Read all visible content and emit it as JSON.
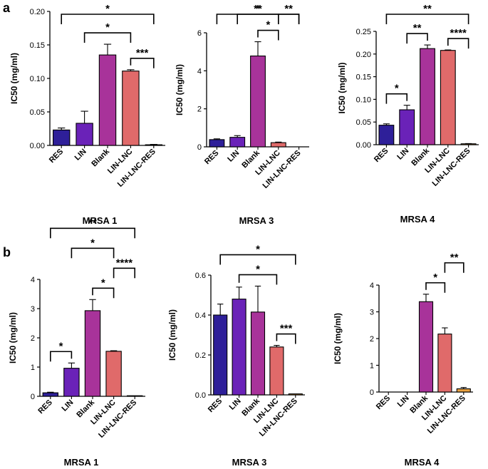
{
  "panels": [
    {
      "letter": "a"
    },
    {
      "letter": "b"
    }
  ],
  "colors": {
    "RES": "#2e1f99",
    "LIN": "#6a22b8",
    "Blank": "#a8339a",
    "LIN-LNC": "#e06a6a",
    "LIN-LNC-RES": "#e8a040"
  },
  "chart_data": [
    {
      "type": "bar",
      "panel": "a",
      "title": "MRSA 1",
      "ylabel": "IC50 (mg/ml)",
      "categories": [
        "RES",
        "LIN",
        "Blank",
        "LIN-LNC",
        "LIN-LNC-RES"
      ],
      "values": [
        0.023,
        0.033,
        0.135,
        0.111,
        0.001
      ],
      "errors": [
        0.003,
        0.018,
        0.016,
        0.002,
        0.0005
      ],
      "ylim": [
        0,
        0.2
      ],
      "yticks": [
        "0.00",
        "0.05",
        "0.10",
        "0.15",
        "0.20"
      ],
      "ytick_values": [
        0,
        0.05,
        0.1,
        0.15,
        0.2
      ],
      "significance": [
        {
          "from": 0,
          "to": 4,
          "label": "*"
        },
        {
          "from": 1,
          "to": 3,
          "label": "*"
        },
        {
          "from": 3,
          "to": 4,
          "label": "***"
        }
      ]
    },
    {
      "type": "bar",
      "panel": "a",
      "title": "MRSA 3",
      "ylabel": "IC50 (mg/ml)",
      "categories": [
        "RES",
        "LIN",
        "Blank",
        "LIN-LNC",
        "LIN-LNC-RES"
      ],
      "values": [
        0.38,
        0.5,
        4.78,
        0.22,
        0.0
      ],
      "errors": [
        0.04,
        0.09,
        0.75,
        0.03,
        0.0
      ],
      "ylim": [
        0,
        6
      ],
      "yticks": [
        "0",
        "2",
        "4",
        "6"
      ],
      "ytick_values": [
        0,
        2,
        4,
        6
      ],
      "significance": [
        {
          "from": 0,
          "to": 4,
          "label": "**"
        },
        {
          "from": 1,
          "to": 3,
          "label": "*"
        },
        {
          "from": 2,
          "to": 3,
          "label": "*"
        },
        {
          "from": 3,
          "to": 4,
          "label": "**"
        }
      ]
    },
    {
      "type": "bar",
      "panel": "a",
      "title": "MRSA 4",
      "ylabel": "IC50 (mg/ml)",
      "categories": [
        "RES",
        "LIN",
        "Blank",
        "LIN-LNC",
        "LIN-LNC-RES"
      ],
      "values": [
        0.043,
        0.077,
        0.212,
        0.208,
        0.002
      ],
      "errors": [
        0.003,
        0.01,
        0.008,
        0.001,
        0.0005
      ],
      "ylim": [
        0,
        0.25
      ],
      "yticks": [
        "0.00",
        "0.05",
        "0.10",
        "0.15",
        "0.20",
        "0.25"
      ],
      "ytick_values": [
        0,
        0.05,
        0.1,
        0.15,
        0.2,
        0.25
      ],
      "significance": [
        {
          "from": 0,
          "to": 4,
          "label": "**"
        },
        {
          "from": 0,
          "to": 1,
          "label": "*"
        },
        {
          "from": 1,
          "to": 2,
          "label": "**"
        },
        {
          "from": 3,
          "to": 4,
          "label": "****"
        }
      ]
    },
    {
      "type": "bar",
      "panel": "b",
      "title": "MRSA 1",
      "ylabel": "IC50 (mg/ml)",
      "categories": [
        "RES",
        "LIN",
        "Blank",
        "LIN-LNC",
        "LIN-LNC-RES"
      ],
      "values": [
        0.12,
        0.96,
        2.93,
        1.54,
        0.02
      ],
      "errors": [
        0.02,
        0.18,
        0.38,
        0.02,
        0.0
      ],
      "ylim": [
        0,
        4
      ],
      "yticks": [
        "0",
        "1",
        "2",
        "3",
        "4"
      ],
      "ytick_values": [
        0,
        1,
        2,
        3,
        4
      ],
      "significance": [
        {
          "from": 0,
          "to": 4,
          "label": "**"
        },
        {
          "from": 1,
          "to": 3,
          "label": "*"
        },
        {
          "from": 2,
          "to": 3,
          "label": "*"
        },
        {
          "from": 0,
          "to": 1,
          "label": "*"
        },
        {
          "from": 3,
          "to": 4,
          "label": "****"
        }
      ]
    },
    {
      "type": "bar",
      "panel": "b",
      "title": "MRSA 3",
      "ylabel": "IC50 (mg/ml)",
      "categories": [
        "RES",
        "LIN",
        "Blank",
        "LIN-LNC",
        "LIN-LNC-RES"
      ],
      "values": [
        0.4,
        0.48,
        0.415,
        0.24,
        0.005
      ],
      "errors": [
        0.055,
        0.06,
        0.13,
        0.008,
        0.0
      ],
      "ylim": [
        0,
        0.6
      ],
      "yticks": [
        "0.0",
        "0.2",
        "0.4",
        "0.6"
      ],
      "ytick_values": [
        0,
        0.2,
        0.4,
        0.6
      ],
      "significance": [
        {
          "from": 0,
          "to": 4,
          "label": "*"
        },
        {
          "from": 1,
          "to": 3,
          "label": "*"
        },
        {
          "from": 3,
          "to": 4,
          "label": "***"
        }
      ]
    },
    {
      "type": "bar",
      "panel": "b",
      "title": "MRSA 4",
      "ylabel": "IC50 (mg/ml)",
      "categories": [
        "RES",
        "LIN",
        "Blank",
        "LIN-LNC",
        "LIN-LNC-RES"
      ],
      "values": [
        0,
        0,
        3.38,
        2.17,
        0.12
      ],
      "errors": [
        0,
        0,
        0.28,
        0.23,
        0.05
      ],
      "ylim": [
        0,
        4
      ],
      "yticks": [
        "0",
        "1",
        "2",
        "3",
        "4"
      ],
      "ytick_values": [
        0,
        1,
        2,
        3,
        4
      ],
      "significance": [
        {
          "from": 2,
          "to": 3,
          "label": "*"
        },
        {
          "from": 3,
          "to": 4,
          "label": "**"
        }
      ]
    }
  ]
}
